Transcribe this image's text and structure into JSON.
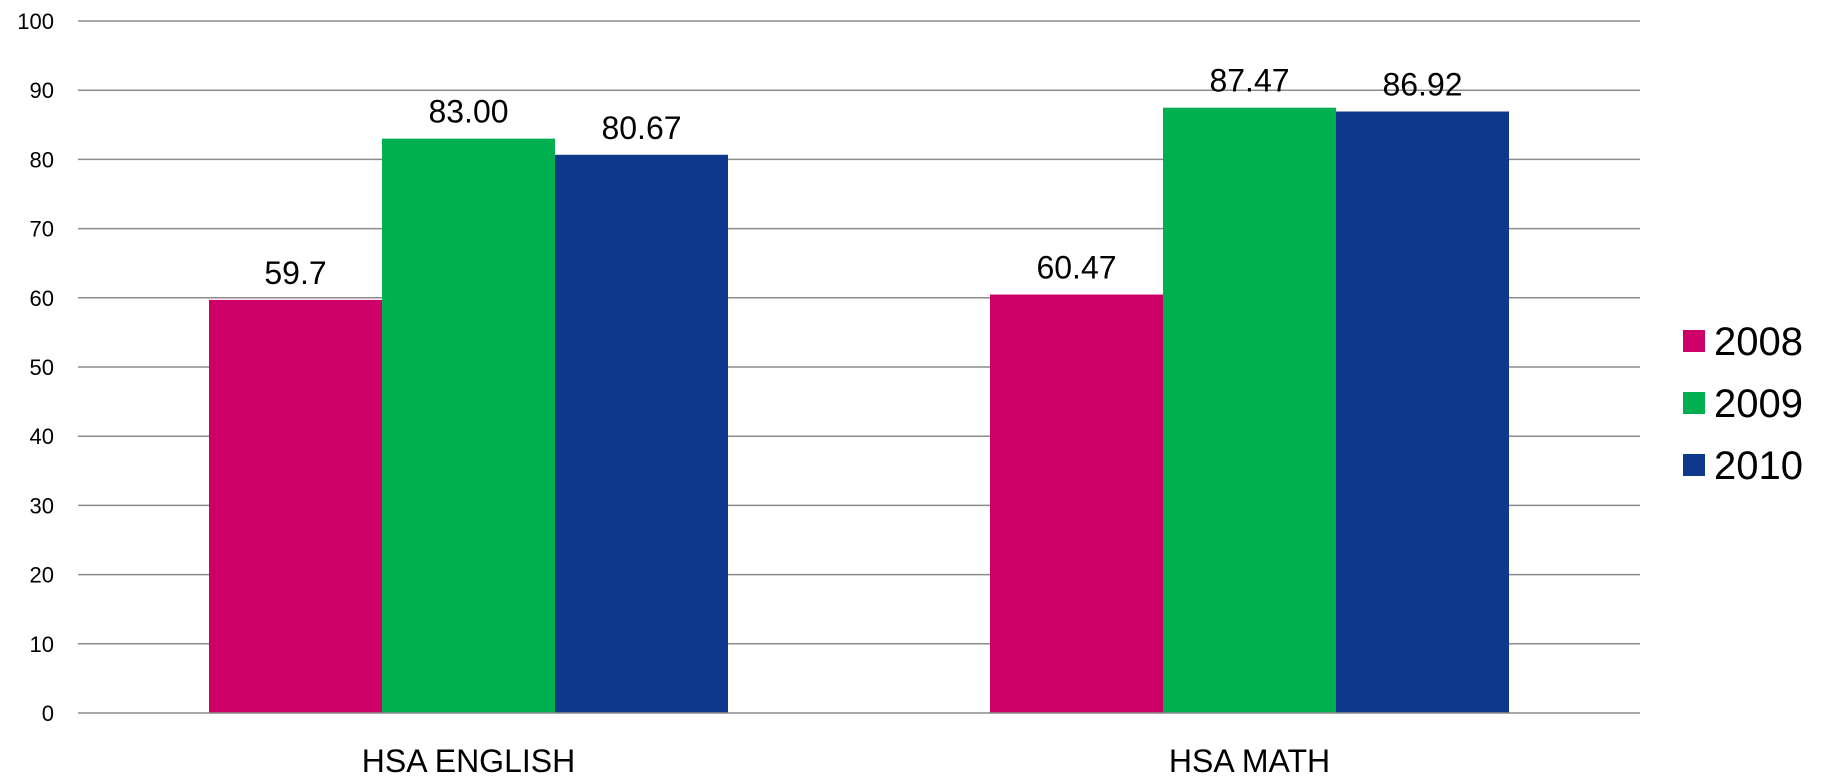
{
  "chart_data": {
    "type": "bar",
    "categories": [
      "HSA ENGLISH",
      "HSA MATH"
    ],
    "series": [
      {
        "name": "2008",
        "values": [
          59.7,
          60.47
        ],
        "labels": [
          "59.7",
          "60.47"
        ],
        "color": "#cc0066"
      },
      {
        "name": "2009",
        "values": [
          83.0,
          87.47
        ],
        "labels": [
          "83.00",
          "87.47"
        ],
        "color": "#00b050"
      },
      {
        "name": "2010",
        "values": [
          80.67,
          86.92
        ],
        "labels": [
          "80.67",
          "86.92"
        ],
        "color": "#0d388c"
      }
    ],
    "ylim": [
      0,
      100
    ],
    "yticks": [
      0,
      10,
      20,
      30,
      40,
      50,
      60,
      70,
      80,
      90,
      100
    ],
    "title": "",
    "xlabel": "",
    "ylabel": "",
    "grid": true,
    "legend_position": "right"
  }
}
